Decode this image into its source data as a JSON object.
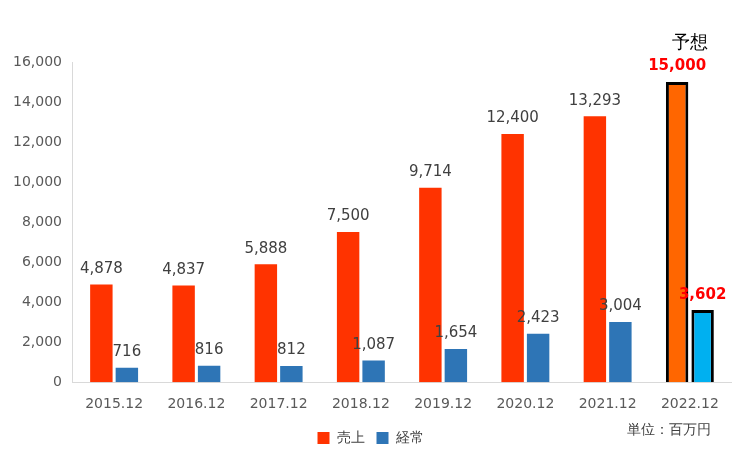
{
  "chart_data": {
    "type": "bar",
    "categories": [
      "2015.12",
      "2016.12",
      "2017.12",
      "2018.12",
      "2019.12",
      "2020.12",
      "2021.12",
      "2022.12"
    ],
    "series": [
      {
        "name": "売上",
        "color": "#FF3300",
        "colors": [
          "#FF3300",
          "#FF3300",
          "#FF3300",
          "#FF3300",
          "#FF3300",
          "#FF3300",
          "#FF3300",
          "#FF6600"
        ],
        "values": [
          4878,
          4837,
          5888,
          7500,
          9714,
          12400,
          13293,
          15000
        ],
        "value_labels": [
          "4,878",
          "4,837",
          "5,888",
          "7,500",
          "9,714",
          "12,400",
          "13,293",
          "15,000"
        ]
      },
      {
        "name": "経常",
        "color": "#2E75B6",
        "colors": [
          "#2E75B6",
          "#2E75B6",
          "#2E75B6",
          "#2E75B6",
          "#2E75B6",
          "#2E75B6",
          "#2E75B6",
          "#00B0F0"
        ],
        "values": [
          716,
          816,
          812,
          1087,
          1654,
          2423,
          3004,
          3602
        ],
        "value_labels": [
          "716",
          "816",
          "812",
          "1,087",
          "1,654",
          "2,423",
          "3,004",
          "3,602"
        ]
      }
    ],
    "ylim": [
      0,
      16000
    ],
    "yticks": [
      0,
      {
        "value": 2000,
        "label": "2,000"
      },
      {
        "value": 4000,
        "label": "4,000"
      },
      {
        "value": 6000,
        "label": "6,000"
      },
      {
        "value": 8000,
        "label": "8,000"
      },
      {
        "value": 10000,
        "label": "10,000"
      },
      {
        "value": 12000,
        "label": "12,000"
      },
      {
        "value": 14000,
        "label": "14,000"
      },
      {
        "value": 16000,
        "label": "16,000"
      }
    ],
    "grid": false,
    "legend": "bottom",
    "data_labels": true,
    "annotations": [
      {
        "text": "予想",
        "category": "2022.12"
      },
      {
        "text": "単位：百万円"
      }
    ]
  }
}
